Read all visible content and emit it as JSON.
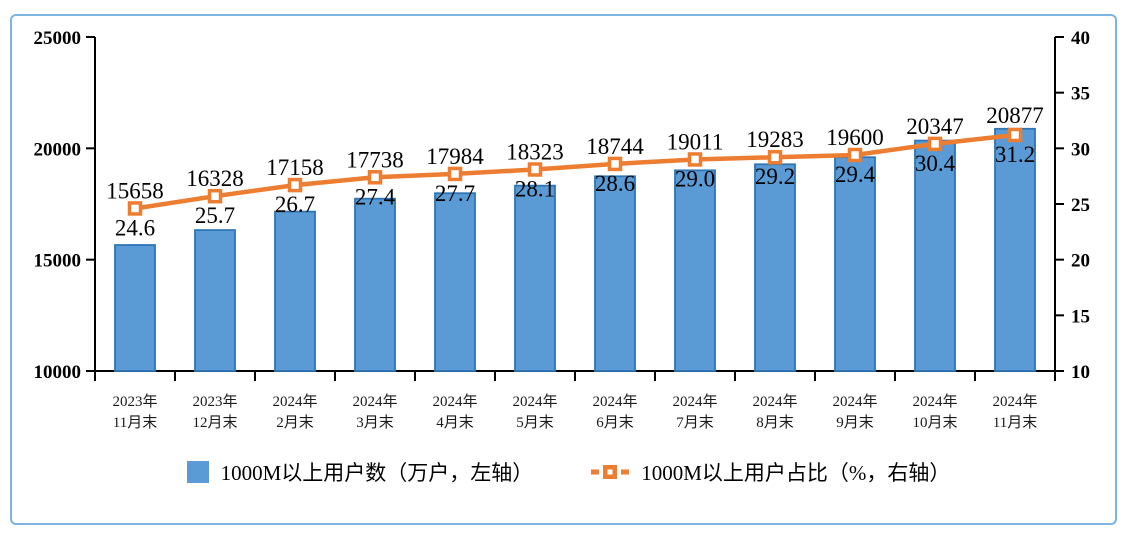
{
  "frame": {
    "border_color": "#7EB4E2",
    "background": "#FFFFFF"
  },
  "chart_data": {
    "type": "combo bar+line, dual axis",
    "title": "",
    "categories": [
      [
        "2023年",
        "11月末"
      ],
      [
        "2023年",
        "12月末"
      ],
      [
        "2024年",
        "2月末"
      ],
      [
        "2024年",
        "3月末"
      ],
      [
        "2024年",
        "4月末"
      ],
      [
        "2024年",
        "5月末"
      ],
      [
        "2024年",
        "6月末"
      ],
      [
        "2024年",
        "7月末"
      ],
      [
        "2024年",
        "8月末"
      ],
      [
        "2024年",
        "9月末"
      ],
      [
        "2024年",
        "10月末"
      ],
      [
        "2024年",
        "11月末"
      ]
    ],
    "series": [
      {
        "name": "1000M以上用户数（万户，左轴）",
        "type": "bar",
        "axis": "left",
        "color": "#5B9BD5",
        "border_color": "#2E75B6",
        "values": [
          15658,
          16328,
          17158,
          17738,
          17984,
          18323,
          18744,
          19011,
          19283,
          19600,
          20347,
          20877
        ],
        "labels": [
          "15658",
          "16328",
          "17158",
          "17738",
          "17984",
          "18323",
          "18744",
          "19011",
          "19283",
          "19600",
          "20347",
          "20877"
        ]
      },
      {
        "name": "1000M以上用户占比（%，右轴）",
        "type": "line",
        "axis": "right",
        "color": "#ED7D31",
        "marker": "square-with-white-center",
        "values": [
          24.6,
          25.7,
          26.7,
          27.4,
          27.7,
          28.1,
          28.6,
          29.0,
          29.2,
          29.4,
          30.4,
          31.2
        ],
        "labels": [
          "24.6",
          "25.7",
          "26.7",
          "27.4",
          "27.7",
          "28.1",
          "28.6",
          "29.0",
          "29.2",
          "29.4",
          "30.4",
          "31.2"
        ]
      }
    ],
    "left_axis": {
      "min": 10000,
      "max": 25000,
      "tick_values": [
        25000,
        20000,
        15000,
        10000
      ],
      "tick_labels": [
        "25000",
        "20000",
        "15000",
        "10000"
      ]
    },
    "right_axis": {
      "min": 10,
      "max": 40,
      "tick_values": [
        40,
        35,
        30,
        25,
        20,
        15,
        10
      ],
      "tick_labels": [
        "40",
        "35",
        "30",
        "25",
        "20",
        "15",
        "10"
      ]
    },
    "grid": false,
    "legend_position": "bottom-center"
  }
}
